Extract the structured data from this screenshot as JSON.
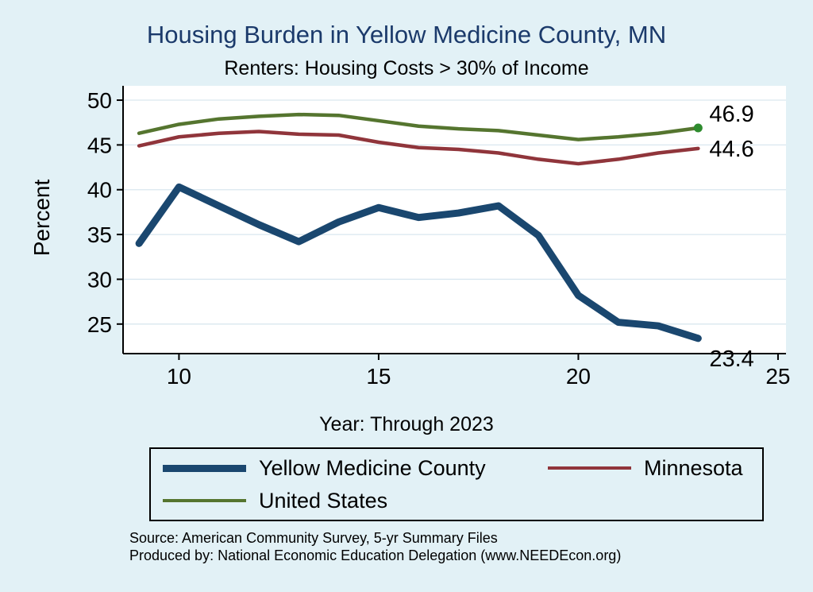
{
  "chart": {
    "title": "Housing Burden in Yellow Medicine County, MN",
    "subtitle": "Renters: Housing Costs > 30% of Income",
    "ylabel": "Percent",
    "xlabel": "Year: Through 2023"
  },
  "chart_data": {
    "type": "line",
    "x": [
      9,
      10,
      11,
      12,
      13,
      14,
      15,
      16,
      17,
      18,
      19,
      20,
      21,
      22,
      23
    ],
    "series": [
      {
        "name": "Yellow Medicine County",
        "color": "#1a476f",
        "width": 9,
        "values": [
          34.0,
          40.3,
          38.2,
          36.1,
          34.2,
          36.4,
          38.0,
          36.9,
          37.4,
          38.2,
          34.9,
          28.2,
          25.2,
          24.8,
          23.4
        ],
        "end_label": "23.4"
      },
      {
        "name": "Minnesota",
        "color": "#90353b",
        "width": 4.5,
        "values": [
          44.9,
          45.9,
          46.3,
          46.5,
          46.2,
          46.1,
          45.3,
          44.7,
          44.5,
          44.1,
          43.4,
          42.9,
          43.4,
          44.1,
          44.6
        ],
        "end_label": "44.6"
      },
      {
        "name": "United States",
        "color": "#55752f",
        "width": 4.5,
        "values": [
          46.3,
          47.3,
          47.9,
          48.2,
          48.4,
          48.3,
          47.7,
          47.1,
          46.8,
          46.6,
          46.1,
          45.6,
          45.9,
          46.3,
          46.9
        ],
        "end_label": "46.9",
        "end_marker": true,
        "end_marker_color": "#2e8b2e"
      }
    ],
    "xticks": [
      10,
      15,
      20,
      25
    ],
    "yticks": [
      25,
      30,
      35,
      40,
      45,
      50
    ],
    "xlim": [
      8.6,
      25.2
    ],
    "ylim": [
      21.7,
      51.6
    ],
    "grid": true,
    "legend_position": "bottom"
  },
  "footer": {
    "source_line": "Source: American Community Survey, 5-yr Summary Files",
    "produced_line": "Produced by: National Economic Education Delegation (www.NEEDEcon.org)"
  },
  "colors": {
    "background": "#e2f1f6",
    "title": "#1b3a6b",
    "plot_bg": "#ffffff",
    "grid": "#d9e7ef",
    "axis": "#000000"
  }
}
